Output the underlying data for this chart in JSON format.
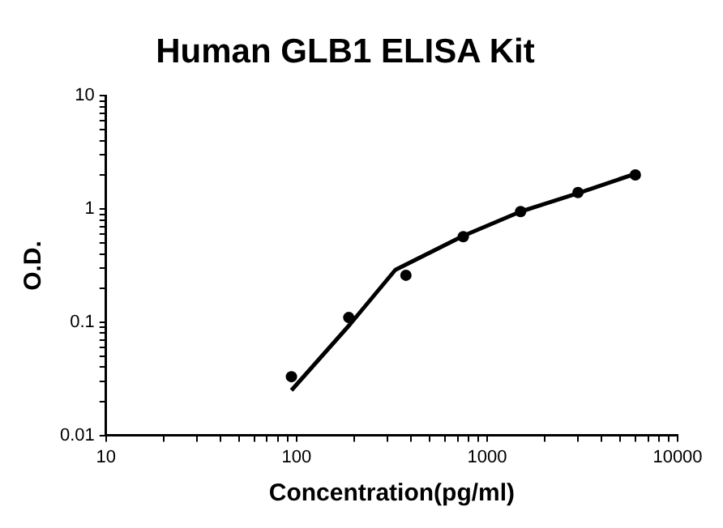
{
  "chart_data": {
    "type": "scatter",
    "title": "Human GLB1 ELISA Kit",
    "xlabel": "Concentration(pg/ml)",
    "ylabel": "O.D.",
    "log": "xy",
    "grid": false,
    "legend": false,
    "xlim": [
      10,
      10000
    ],
    "xticks": [
      10,
      100,
      1000,
      10000
    ],
    "ylim": [
      0.01,
      10
    ],
    "yticks": [
      0.01,
      0.1,
      1,
      10
    ],
    "series": [
      {
        "type": "scatter",
        "color": "#000000",
        "marker": "circle",
        "x": [
          94,
          188,
          375,
          750,
          1500,
          3000,
          6000
        ],
        "values": [
          0.033,
          0.11,
          0.26,
          0.57,
          0.95,
          1.4,
          2.0
        ]
      },
      {
        "type": "line",
        "color": "#000000",
        "marker": "none",
        "line_style": "solid",
        "x": [
          94,
          190,
          330,
          750,
          1500,
          3000,
          6000
        ],
        "values": [
          0.025,
          0.095,
          0.29,
          0.58,
          0.95,
          1.38,
          2.05
        ]
      }
    ]
  }
}
